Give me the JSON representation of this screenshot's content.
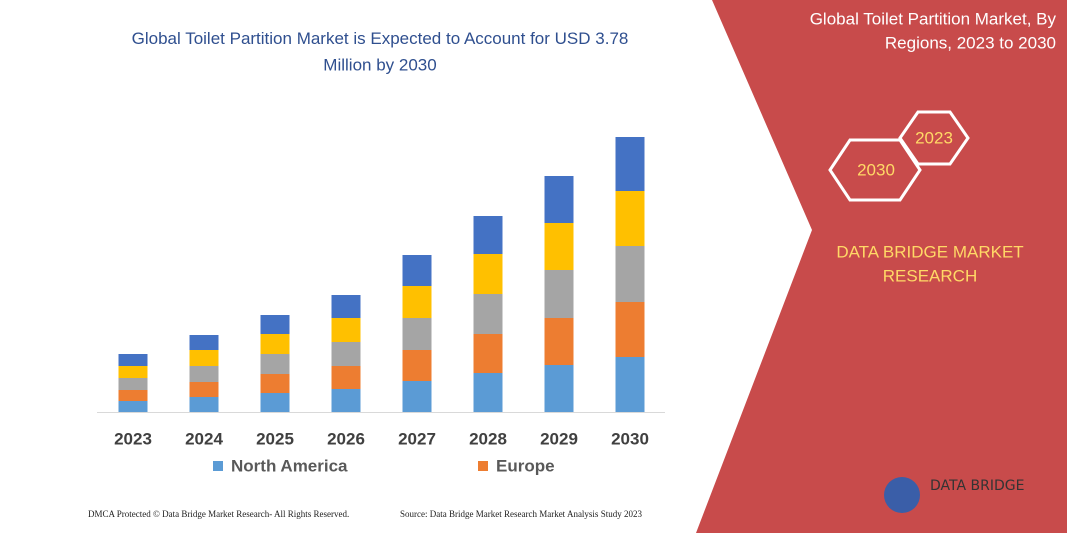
{
  "chart_data": {
    "type": "bar",
    "stacked": true,
    "title": "Global Toilet Partition Market is Expected to Account for USD 3.78 Million by 2030",
    "categories": [
      "2023",
      "2024",
      "2025",
      "2026",
      "2027",
      "2028",
      "2029",
      "2030"
    ],
    "series": [
      {
        "name": "North America",
        "color": "#5b9bd5",
        "values": [
          11,
          15,
          19,
          23,
          31,
          39,
          47,
          55
        ]
      },
      {
        "name": "Europe",
        "color": "#ed7d31",
        "values": [
          11,
          15,
          19,
          23,
          31,
          39,
          47,
          55
        ]
      },
      {
        "color": "#a5a5a5",
        "values": [
          12,
          16,
          20,
          24,
          32,
          40,
          48,
          56
        ]
      },
      {
        "color": "#ffc000",
        "values": [
          12,
          16,
          20,
          24,
          32,
          40,
          47,
          55
        ]
      },
      {
        "color": "#4472c4",
        "values": [
          12,
          15,
          19,
          23,
          31,
          38,
          47,
          54
        ]
      }
    ]
  },
  "side_panel": {
    "title_line1": "Global Toilet Partition Market, By",
    "title_line2": "Regions, 2023 to 2030",
    "hex_left": "2030",
    "hex_right": "2023",
    "brand_line1": "DATA BRIDGE MARKET",
    "brand_line2": "RESEARCH",
    "logo_text": "DATA BRIDGE"
  },
  "footer": {
    "left": "DMCA Protected © Data Bridge Market Research-  All Rights Reserved.",
    "right": "Source: Data Bridge Market Research  Market Analysis Study 2023"
  }
}
